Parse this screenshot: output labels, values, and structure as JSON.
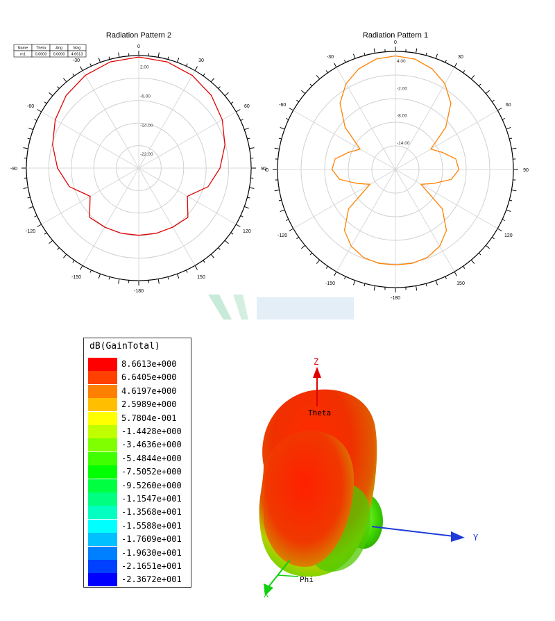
{
  "chart_data": [
    {
      "type": "polar-line",
      "title": "Radiation Pattern 2",
      "theta_labels": [
        "0",
        "30",
        "60",
        "90",
        "120",
        "150",
        "-180",
        "-150",
        "-120",
        "-90",
        "-60",
        "-30"
      ],
      "radial_labels": [
        "2.00",
        "-6.00",
        "-14.00",
        "-22.00"
      ],
      "radial_range": [
        -26,
        5
      ],
      "marker_table": {
        "headers": [
          "Name",
          "Theta",
          "Ang",
          "Mag"
        ],
        "rows": [
          [
            "m1",
            "0.0000",
            "0.0000",
            "4.6613"
          ]
        ]
      },
      "series": [
        {
          "name": "",
          "color": "#e00000",
          "theta_deg": [
            0,
            15,
            30,
            45,
            60,
            75,
            90,
            105,
            120,
            135,
            150,
            165,
            180,
            195,
            210,
            225,
            240,
            255,
            270,
            285,
            300,
            315,
            330,
            345
          ],
          "values": [
            4.6,
            4.3,
            3.5,
            2.3,
            0.6,
            -1.4,
            -3.6,
            -6.2,
            -10.5,
            -6.8,
            -7.2,
            -7.4,
            -7.5,
            -7.4,
            -7.2,
            -6.8,
            -10.5,
            -6.2,
            -3.6,
            -1.4,
            0.6,
            2.3,
            3.5,
            4.3
          ]
        }
      ]
    },
    {
      "type": "polar-line",
      "title": "Radiation Pattern 1",
      "theta_labels": [
        "0",
        "30",
        "60",
        "90",
        "120",
        "150",
        "-180",
        "-150",
        "-120",
        "-90",
        "-60",
        "-30"
      ],
      "radial_labels": [
        "4.00",
        "-2.00",
        "-8.00",
        "-14.00"
      ],
      "radial_range": [
        -20,
        6
      ],
      "series": [
        {
          "name": "",
          "color": "#ff8000",
          "theta_deg": [
            0,
            10,
            20,
            30,
            40,
            50,
            60,
            70,
            80,
            90,
            100,
            110,
            120,
            130,
            140,
            150,
            160,
            170,
            180,
            190,
            200,
            210,
            220,
            230,
            240,
            250,
            260,
            270,
            280,
            290,
            300,
            310,
            320,
            330,
            340,
            350
          ],
          "values": [
            5.0,
            4.7,
            3.6,
            1.8,
            -1.0,
            -5.5,
            -11.0,
            -9.0,
            -6.5,
            -6.0,
            -7.5,
            -11.0,
            -13.5,
            -6.5,
            -2.5,
            -0.5,
            0.6,
            1.0,
            1.0,
            1.0,
            0.6,
            -0.5,
            -2.5,
            -6.5,
            -13.5,
            -11.0,
            -7.5,
            -6.0,
            -6.5,
            -9.0,
            -11.0,
            -5.5,
            -1.0,
            1.8,
            3.6,
            4.7
          ]
        }
      ]
    },
    {
      "type": "heatmap",
      "title": "dB(GainTotal)",
      "legend_entries": [
        {
          "label": "8.6613e+000",
          "color": "#ff0000"
        },
        {
          "label": "6.6405e+000",
          "color": "#ff4000"
        },
        {
          "label": "4.6197e+000",
          "color": "#ff8000"
        },
        {
          "label": "2.5989e+000",
          "color": "#ffbf00"
        },
        {
          "label": "5.7804e-001",
          "color": "#ffff00"
        },
        {
          "label": "-1.4428e+000",
          "color": "#c0ff00"
        },
        {
          "label": "-3.4636e+000",
          "color": "#80ff00"
        },
        {
          "label": "-5.4844e+000",
          "color": "#40ff00"
        },
        {
          "label": "-7.5052e+000",
          "color": "#00ff00"
        },
        {
          "label": "-9.5260e+000",
          "color": "#00ff40"
        },
        {
          "label": "-1.1547e+001",
          "color": "#00ff80"
        },
        {
          "label": "-1.3568e+001",
          "color": "#00ffc0"
        },
        {
          "label": "-1.5588e+001",
          "color": "#00ffff"
        },
        {
          "label": "-1.7609e+001",
          "color": "#00c0ff"
        },
        {
          "label": "-1.9630e+001",
          "color": "#0080ff"
        },
        {
          "label": "-2.1651e+001",
          "color": "#0040ff"
        },
        {
          "label": "-2.3672e+001",
          "color": "#0000ff"
        }
      ],
      "axes_labels": {
        "z": "Z",
        "y": "Y",
        "x": "X",
        "theta": "Theta",
        "phi": "Phi"
      }
    }
  ]
}
